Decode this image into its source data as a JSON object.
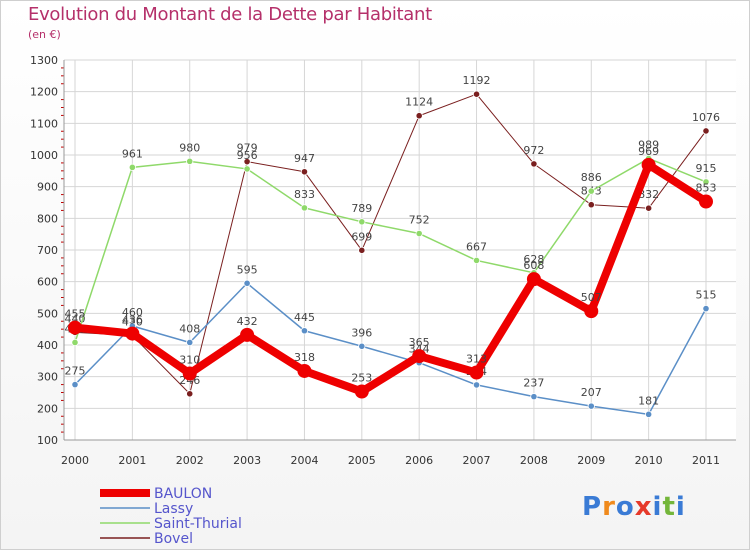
{
  "title": "Evolution du Montant de la Dette par Habitant",
  "unit": "(en €)",
  "logo": {
    "letters": [
      "P",
      "r",
      "o",
      "x",
      "i",
      "t",
      "i"
    ],
    "colors": [
      "#3a7bd5",
      "#f08a1c",
      "#3a7bd5",
      "#e63a2a",
      "#3a7bd5",
      "#74b63a",
      "#3a7bd5"
    ]
  },
  "chart_data": {
    "type": "line",
    "x": [
      "2000",
      "2001",
      "2002",
      "2003",
      "2004",
      "2005",
      "2006",
      "2007",
      "2008",
      "2009",
      "2010",
      "2011"
    ],
    "ylim": [
      100,
      1300
    ],
    "yticks": [
      "100",
      "200",
      "300",
      "400",
      "500",
      "600",
      "700",
      "800",
      "900",
      "1000",
      "1100",
      "1200",
      "1300"
    ],
    "grid": true,
    "legend_position": "bottom-left",
    "series": [
      {
        "name": "Bovel",
        "color": "#7a1f1f",
        "width": 1,
        "values": [
          440,
          430,
          246,
          979,
          947,
          699,
          1124,
          1192,
          972,
          843,
          832,
          1076
        ],
        "labels": [
          "440",
          "430",
          "246",
          "979",
          "947",
          "699",
          "1124",
          "1192",
          "972",
          "843",
          "832",
          "1076"
        ]
      },
      {
        "name": "Saint-Thurial",
        "color": "#8fd96a",
        "width": 1.5,
        "values": [
          408,
          961,
          980,
          956,
          833,
          789,
          752,
          667,
          628,
          886,
          989,
          915
        ],
        "labels": [
          "408",
          "961",
          "980",
          "956",
          "833",
          "789",
          "752",
          "667",
          "628",
          "886",
          "989",
          "915"
        ]
      },
      {
        "name": "Lassy",
        "color": "#5b8fc7",
        "width": 1.5,
        "values": [
          275,
          460,
          408,
          595,
          445,
          396,
          344,
          274,
          237,
          207,
          181,
          515
        ],
        "labels": [
          "275",
          "460",
          "408",
          "595",
          "445",
          "396",
          "344",
          "274",
          "237",
          "207",
          "181",
          "515"
        ]
      },
      {
        "name": "BAULON",
        "color": "#ee0000",
        "width": 8,
        "values": [
          455,
          436,
          310,
          432,
          318,
          253,
          365,
          313,
          608,
          507,
          969,
          853
        ],
        "labels": [
          "455",
          "436",
          "310",
          "432",
          "318",
          "253",
          "365",
          "313",
          "608",
          "507",
          "969",
          "853"
        ]
      }
    ],
    "legend": [
      "BAULON",
      "Lassy",
      "Saint-Thurial",
      "Bovel"
    ]
  }
}
